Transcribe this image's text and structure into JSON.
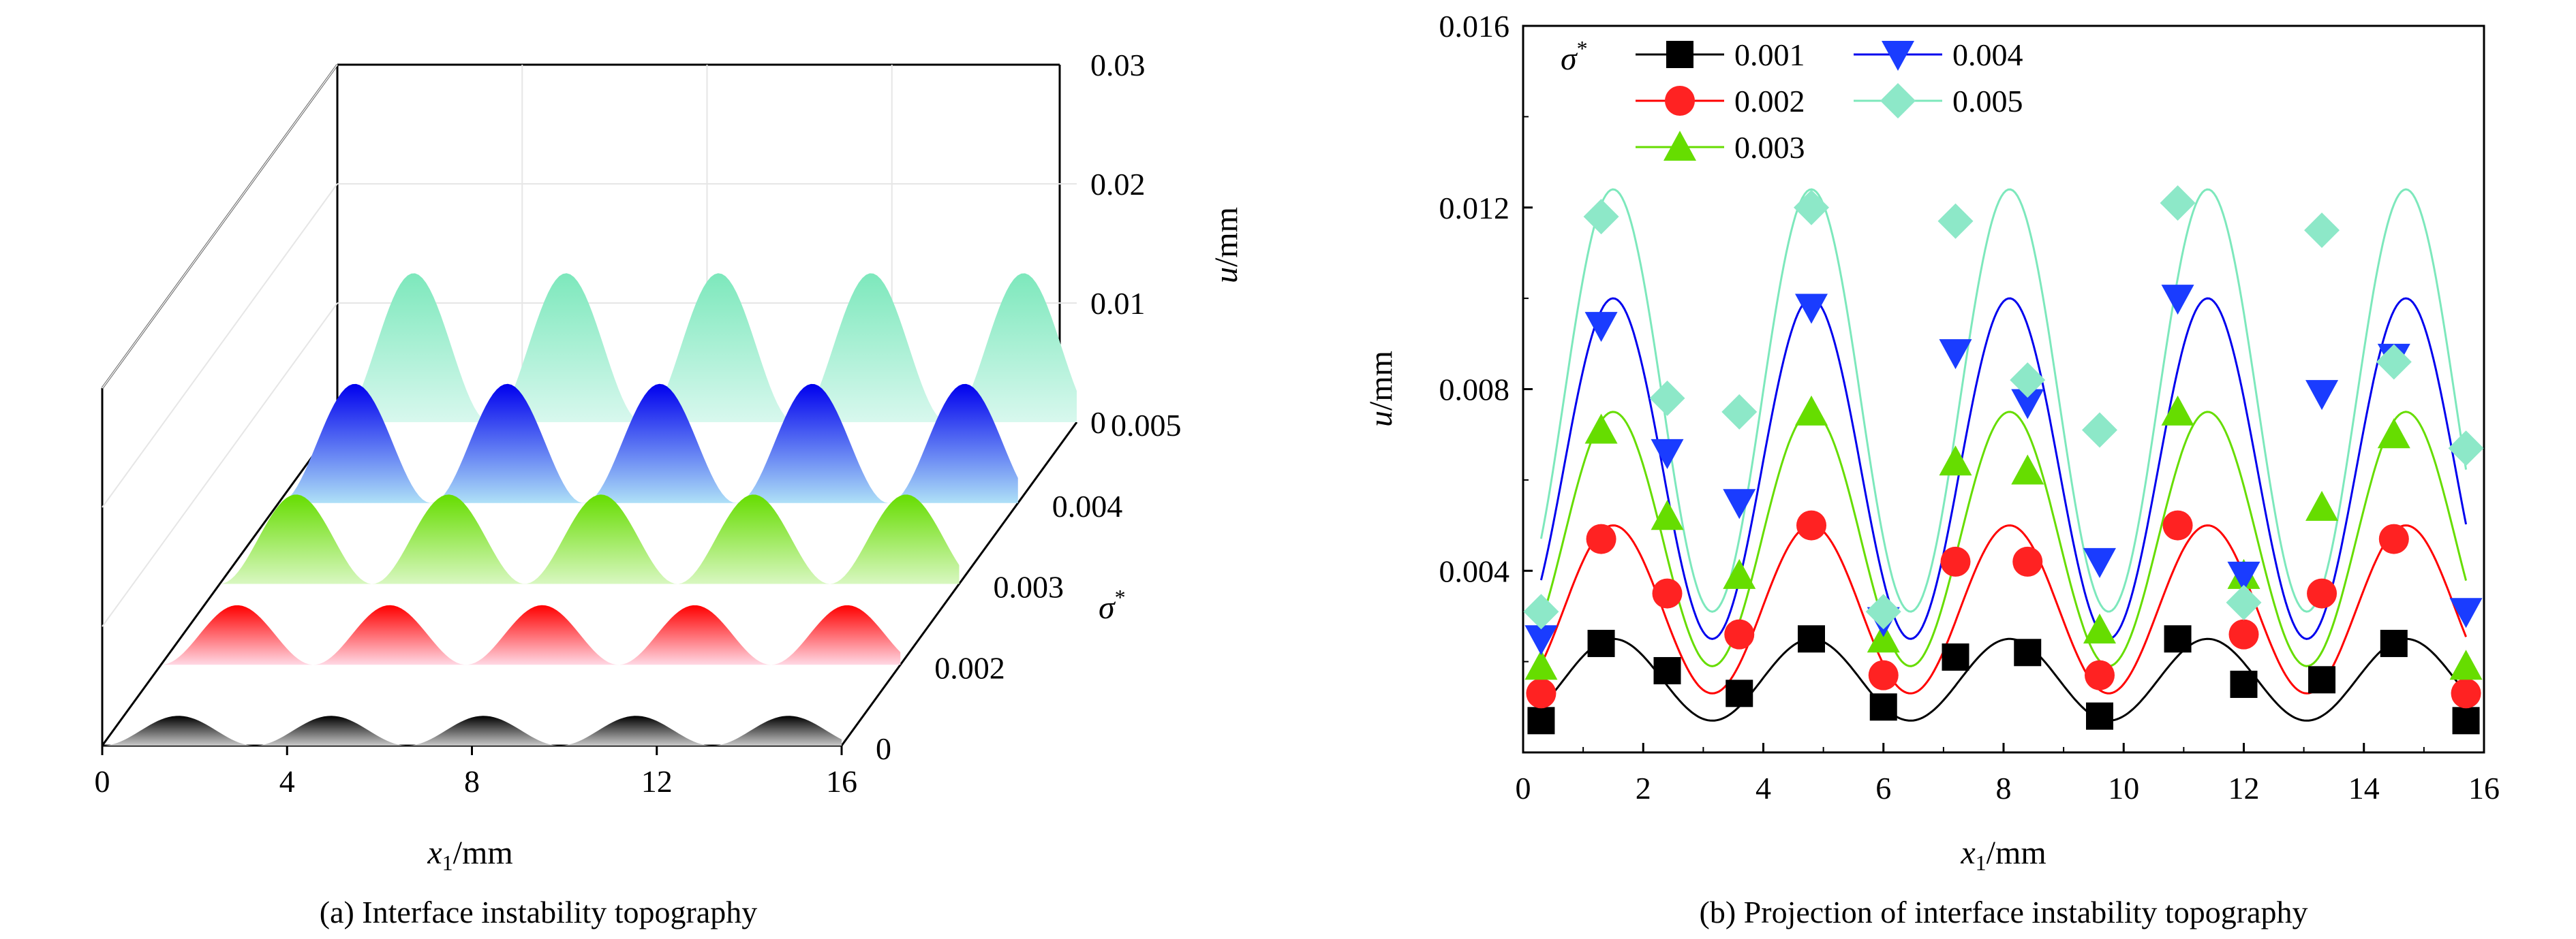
{
  "chart_data": [
    {
      "panel": "a",
      "type": "area",
      "caption": "(a) Interface instability topography",
      "xlabel_main": "x",
      "xlabel_sub": "1",
      "xlabel_unit": "/mm",
      "zlabel_main": "u",
      "zlabel_unit": "/mm",
      "depth_symbol": "σ",
      "depth_sup": "*",
      "x_ticks": [
        "0",
        "4",
        "8",
        "12",
        "16"
      ],
      "z_ticks": [
        "0",
        "0.01",
        "0.02",
        "0.03"
      ],
      "depth_ticks": [
        "0",
        "0.002",
        "0.003",
        "0.004",
        "0.005"
      ],
      "xlim": [
        0,
        16
      ],
      "zlim": [
        0,
        0.03
      ],
      "wavelength": 3.3,
      "series": [
        {
          "sigma": 0.001,
          "amplitude": 0.0025,
          "color_top": "#000000",
          "color_bottom": "#c8c8c8"
        },
        {
          "sigma": 0.002,
          "amplitude": 0.005,
          "color_top": "#ff0000",
          "color_bottom": "#ffd8e4"
        },
        {
          "sigma": 0.003,
          "amplitude": 0.0075,
          "color_top": "#66dd00",
          "color_bottom": "#d8f7c0"
        },
        {
          "sigma": 0.004,
          "amplitude": 0.01,
          "color_top": "#0000ee",
          "color_bottom": "#aee0f7"
        },
        {
          "sigma": 0.005,
          "amplitude": 0.0125,
          "color_top": "#7de8bc",
          "color_bottom": "#d8f8ee"
        }
      ]
    },
    {
      "panel": "b",
      "type": "line",
      "caption": "(b) Projection of interface instability topography",
      "xlabel_main": "x",
      "xlabel_sub": "1",
      "xlabel_unit": "/mm",
      "ylabel_main": "u",
      "ylabel_unit": "/mm",
      "legend_symbol": "σ",
      "legend_sup": "*",
      "legend_position": "top-left",
      "xlim": [
        0,
        16
      ],
      "ylim": [
        0,
        0.016
      ],
      "x_ticks": [
        "0",
        "2",
        "4",
        "6",
        "8",
        "10",
        "12",
        "14",
        "16"
      ],
      "y_ticks": [
        "0.004",
        "0.008",
        "0.012",
        "0.016"
      ],
      "wavelength": 3.3,
      "phase_peak_x": 1.5,
      "marker_x": [
        0.3,
        1.3,
        2.4,
        3.6,
        4.8,
        6.0,
        7.2,
        8.4,
        9.6,
        10.9,
        12.0,
        13.3,
        14.5,
        15.7
      ],
      "series": [
        {
          "name": "0.001",
          "color": "#000000",
          "marker": "square",
          "marker_color": "#000000",
          "peak": 0.0025,
          "trough": 0.0007,
          "marker_y": [
            0.0007,
            0.0024,
            0.0018,
            0.0013,
            0.0025,
            0.001,
            0.0021,
            0.0022,
            0.0008,
            0.0025,
            0.0015,
            0.0016,
            0.0024,
            0.0007
          ]
        },
        {
          "name": "0.002",
          "color": "#ff0000",
          "marker": "circle",
          "marker_color": "#ff2222",
          "peak": 0.005,
          "trough": 0.0013,
          "marker_y": [
            0.0013,
            0.0047,
            0.0035,
            0.0026,
            0.005,
            0.0017,
            0.0042,
            0.0042,
            0.0017,
            0.005,
            0.0026,
            0.0035,
            0.0047,
            0.0013
          ]
        },
        {
          "name": "0.003",
          "color": "#66dd00",
          "marker": "triangle-up",
          "marker_color": "#66dd00",
          "peak": 0.0075,
          "trough": 0.0019,
          "marker_y": [
            0.0019,
            0.0071,
            0.0052,
            0.0039,
            0.0075,
            0.0025,
            0.0064,
            0.0062,
            0.0027,
            0.0075,
            0.0039,
            0.0054,
            0.007,
            0.0019
          ]
        },
        {
          "name": "0.004",
          "color": "#0000ee",
          "marker": "triangle-down",
          "marker_color": "#1a3cff",
          "peak": 0.01,
          "trough": 0.0025,
          "marker_y": [
            0.0025,
            0.0094,
            0.0066,
            0.0055,
            0.0098,
            0.0029,
            0.0088,
            0.0077,
            0.0042,
            0.01,
            0.0039,
            0.0079,
            0.0087,
            0.0031
          ]
        },
        {
          "name": "0.005",
          "color": "#7de8bc",
          "marker": "diamond",
          "marker_color": "#8de8c8",
          "peak": 0.0124,
          "trough": 0.0031,
          "marker_y": [
            0.0031,
            0.0118,
            0.0078,
            0.0075,
            0.012,
            0.0031,
            0.0117,
            0.0082,
            0.0071,
            0.0121,
            0.0033,
            0.0115,
            0.0086,
            0.0067
          ]
        }
      ]
    }
  ]
}
